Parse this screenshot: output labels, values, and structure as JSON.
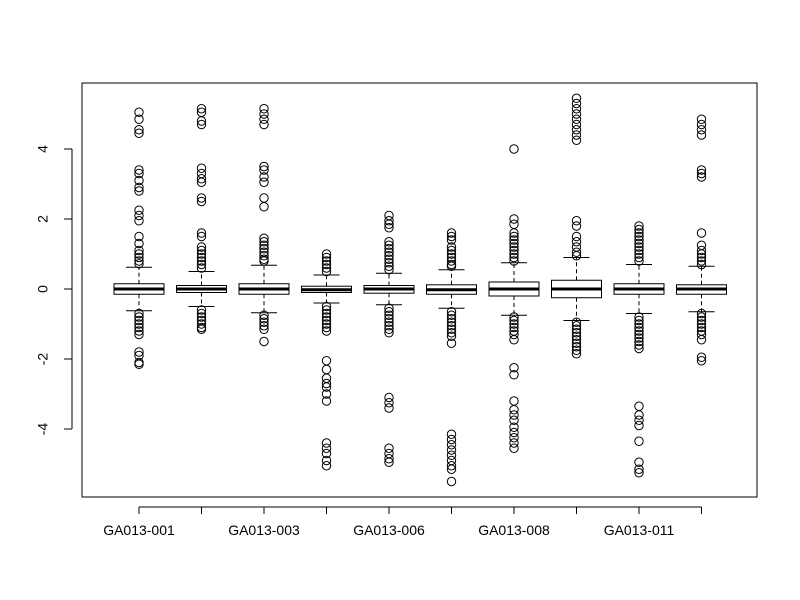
{
  "chart_data": {
    "type": "boxplot",
    "title": "",
    "xlabel": "",
    "ylabel": "",
    "ylim": [
      -6.0,
      6.0
    ],
    "yticks": [
      -4,
      -2,
      0,
      2,
      4
    ],
    "ytick_labels": [
      "-4",
      "-2",
      "0",
      "2",
      "4"
    ],
    "xtick_labels": [
      "GA013-001",
      "",
      "GA013-003",
      "",
      "GA013-006",
      "",
      "GA013-008",
      "",
      "GA013-011",
      ""
    ],
    "grid": false,
    "legend": "none",
    "series": [
      {
        "q1": -0.15,
        "median": 0.0,
        "q3": 0.15,
        "whisker_low": -0.62,
        "whisker_high": 0.62,
        "outliers": [
          5.05,
          4.85,
          4.55,
          4.45,
          3.4,
          3.3,
          3.1,
          2.9,
          2.8,
          2.25,
          2.1,
          1.95,
          1.5,
          1.3,
          1.1,
          1.0,
          0.9,
          0.8,
          0.72,
          -0.7,
          -0.8,
          -0.9,
          -1.0,
          -1.1,
          -1.2,
          -1.3,
          -1.8,
          -1.9,
          -2.1,
          -2.15
        ]
      },
      {
        "q1": -0.1,
        "median": 0.0,
        "q3": 0.1,
        "whisker_low": -0.5,
        "whisker_high": 0.5,
        "outliers": [
          5.15,
          5.05,
          4.8,
          4.7,
          3.45,
          3.3,
          3.15,
          3.05,
          2.6,
          2.5,
          1.6,
          1.5,
          1.2,
          1.1,
          1.0,
          0.9,
          0.8,
          0.7,
          0.6,
          -0.6,
          -0.7,
          -0.8,
          -0.9,
          -1.0,
          -1.1,
          -1.15
        ]
      },
      {
        "q1": -0.15,
        "median": 0.0,
        "q3": 0.15,
        "whisker_low": -0.68,
        "whisker_high": 0.68,
        "outliers": [
          5.15,
          5.0,
          4.85,
          4.7,
          3.5,
          3.4,
          3.2,
          3.05,
          2.6,
          2.35,
          1.45,
          1.35,
          1.25,
          1.15,
          1.05,
          0.95,
          0.85,
          0.8,
          -0.75,
          -0.85,
          -0.95,
          -1.05,
          -1.15,
          -1.5
        ]
      },
      {
        "q1": -0.1,
        "median": -0.02,
        "q3": 0.08,
        "whisker_low": -0.4,
        "whisker_high": 0.4,
        "outliers": [
          1.0,
          0.9,
          0.8,
          0.7,
          0.6,
          0.5,
          -0.5,
          -0.6,
          -0.7,
          -0.8,
          -0.9,
          -1.0,
          -1.1,
          -1.2,
          -2.05,
          -2.3,
          -2.55,
          -2.7,
          -2.8,
          -3.0,
          -3.2,
          -4.4,
          -4.55,
          -4.7,
          -4.9,
          -5.05
        ]
      },
      {
        "q1": -0.12,
        "median": 0.0,
        "q3": 0.1,
        "whisker_low": -0.45,
        "whisker_high": 0.45,
        "outliers": [
          2.1,
          1.95,
          1.85,
          1.75,
          1.35,
          1.25,
          1.15,
          1.05,
          0.95,
          0.85,
          0.75,
          0.65,
          0.55,
          -0.55,
          -0.65,
          -0.75,
          -0.85,
          -0.95,
          -1.05,
          -1.15,
          -1.25,
          -3.1,
          -3.25,
          -3.4,
          -4.55,
          -4.7,
          -4.85,
          -4.95
        ]
      },
      {
        "q1": -0.15,
        "median": -0.02,
        "q3": 0.12,
        "whisker_low": -0.55,
        "whisker_high": 0.55,
        "outliers": [
          1.6,
          1.5,
          1.4,
          1.2,
          1.1,
          1.0,
          0.9,
          0.8,
          0.7,
          0.65,
          -0.65,
          -0.75,
          -0.85,
          -0.95,
          -1.05,
          -1.15,
          -1.25,
          -1.35,
          -1.55,
          -4.15,
          -4.3,
          -4.45,
          -4.6,
          -4.75,
          -4.9,
          -5.05,
          -5.15,
          -5.5
        ]
      },
      {
        "q1": -0.2,
        "median": 0.0,
        "q3": 0.2,
        "whisker_low": -0.75,
        "whisker_high": 0.75,
        "outliers": [
          4.0,
          2.0,
          1.85,
          1.6,
          1.5,
          1.4,
          1.3,
          1.2,
          1.1,
          1.0,
          0.9,
          0.8,
          -0.8,
          -0.9,
          -1.0,
          -1.1,
          -1.2,
          -1.3,
          -1.45,
          -2.25,
          -2.45,
          -3.2,
          -3.45,
          -3.6,
          -3.75,
          -3.95,
          -4.1,
          -4.25,
          -4.4,
          -4.55
        ]
      },
      {
        "q1": -0.25,
        "median": 0.0,
        "q3": 0.25,
        "whisker_low": -0.9,
        "whisker_high": 0.9,
        "outliers": [
          5.45,
          5.3,
          5.15,
          5.0,
          4.85,
          4.7,
          4.55,
          4.4,
          4.25,
          1.95,
          1.8,
          1.5,
          1.35,
          1.2,
          1.05,
          0.95,
          -0.95,
          -1.05,
          -1.15,
          -1.25,
          -1.35,
          -1.45,
          -1.55,
          -1.65,
          -1.75,
          -1.85
        ]
      },
      {
        "q1": -0.15,
        "median": 0.0,
        "q3": 0.15,
        "whisker_low": -0.7,
        "whisker_high": 0.7,
        "outliers": [
          1.8,
          1.7,
          1.6,
          1.5,
          1.4,
          1.3,
          1.2,
          1.1,
          1.0,
          0.9,
          0.8,
          -0.8,
          -0.9,
          -1.0,
          -1.1,
          -1.2,
          -1.3,
          -1.4,
          -1.5,
          -1.6,
          -1.7,
          -3.35,
          -3.6,
          -3.75,
          -3.9,
          -4.35,
          -4.95,
          -5.15,
          -5.25
        ]
      },
      {
        "q1": -0.15,
        "median": 0.0,
        "q3": 0.12,
        "whisker_low": -0.65,
        "whisker_high": 0.65,
        "outliers": [
          4.85,
          4.7,
          4.55,
          4.4,
          3.4,
          3.3,
          3.2,
          1.6,
          1.25,
          1.1,
          1.0,
          0.9,
          0.8,
          0.7,
          -0.7,
          -0.8,
          -0.9,
          -1.0,
          -1.1,
          -1.2,
          -1.3,
          -1.45,
          -1.95,
          -2.05
        ]
      }
    ]
  }
}
